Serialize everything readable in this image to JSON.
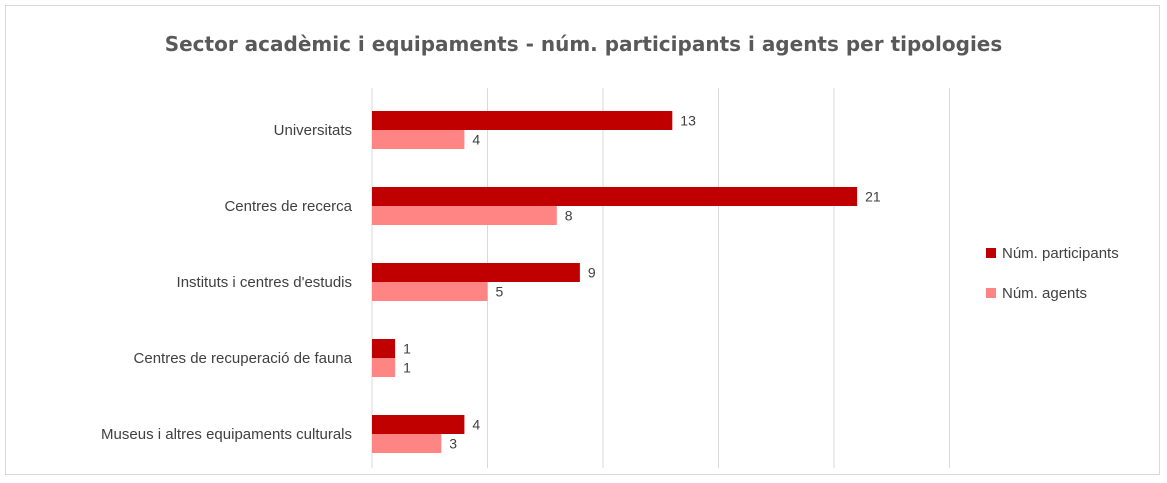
{
  "chart_data": {
    "type": "bar",
    "orientation": "horizontal",
    "title": "Sector acadèmic i equipaments - núm. participants i agents per tipologies",
    "categories": [
      "Universitats",
      "Centres de recerca",
      "Instituts i centres d'estudis",
      "Centres de recuperació de fauna",
      "Museus i altres equipaments culturals"
    ],
    "series": [
      {
        "name": "Núm. participants",
        "color": "#c00000",
        "values": [
          13,
          21,
          9,
          1,
          4
        ]
      },
      {
        "name": "Núm. agents",
        "color": "#ff8585",
        "values": [
          4,
          8,
          5,
          1,
          3
        ]
      }
    ],
    "xlim": [
      0,
      25
    ],
    "gridlines": true,
    "data_labels": true,
    "legend_position": "right"
  }
}
